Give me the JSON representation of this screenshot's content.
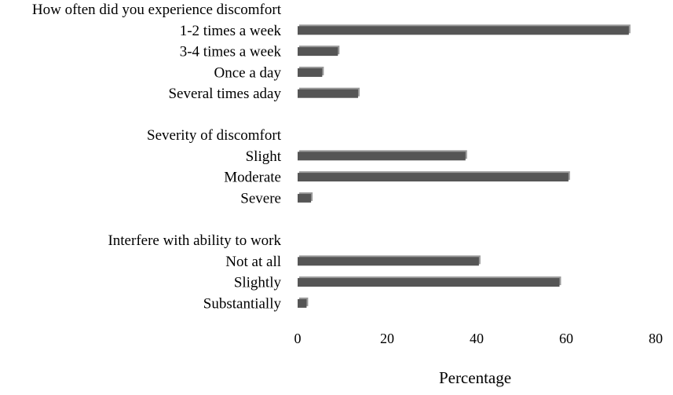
{
  "chart_data": {
    "type": "bar",
    "orientation": "horizontal",
    "xlabel": "Percentage",
    "ylabel": "",
    "xlim": [
      0,
      80
    ],
    "xticks": [
      0,
      20,
      40,
      60,
      80
    ],
    "grid": false,
    "bar_color": "#555555",
    "groups": [
      {
        "title": "How often did you experience discomfort",
        "categories": [
          "1-2 times a week",
          "3-4 times a week",
          "Once a day",
          "Several times aday"
        ],
        "values": [
          74,
          9,
          5.5,
          13.5
        ]
      },
      {
        "title": "Severity of discomfort",
        "categories": [
          "Slight",
          "Moderate",
          "Severe"
        ],
        "values": [
          37.5,
          60.5,
          3
        ]
      },
      {
        "title": "Interfere with ability to work",
        "categories": [
          "Not at all",
          "Slightly",
          "Substantially"
        ],
        "values": [
          40.5,
          58.5,
          2
        ]
      }
    ]
  }
}
